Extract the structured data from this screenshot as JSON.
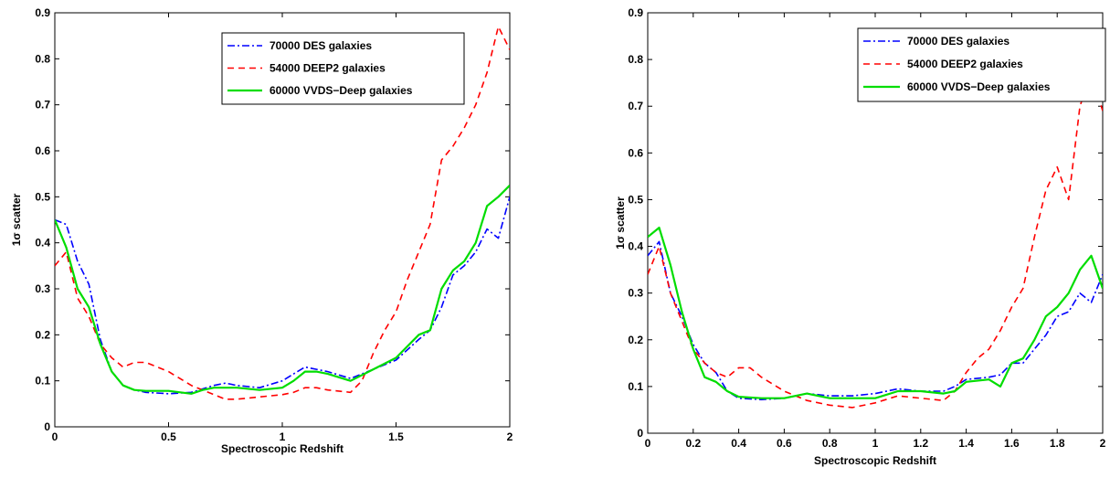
{
  "chart_data": [
    {
      "type": "line",
      "title": "",
      "xlabel": "Spectroscopic Redshift",
      "ylabel": "1σ scatter",
      "xlim": [
        0,
        2
      ],
      "ylim": [
        0,
        0.9
      ],
      "xticks": [
        0,
        0.5,
        1,
        1.5,
        2
      ],
      "xtick_labels": [
        "0",
        "0.5",
        "1",
        "1.5",
        "2"
      ],
      "yticks": [
        0,
        0.1,
        0.2,
        0.3,
        0.4,
        0.5,
        0.6,
        0.7,
        0.8,
        0.9
      ],
      "ytick_labels": [
        "0",
        "0.1",
        "0.2",
        "0.3",
        "0.4",
        "0.5",
        "0.6",
        "0.7",
        "0.8",
        "0.9"
      ],
      "grid": false,
      "legend_position": "top-right",
      "series": [
        {
          "name": "70000 DES galaxies",
          "color": "#0000ff",
          "dash": "dash-dot",
          "x": [
            0,
            0.05,
            0.1,
            0.15,
            0.2,
            0.25,
            0.3,
            0.35,
            0.4,
            0.5,
            0.6,
            0.7,
            0.75,
            0.8,
            0.9,
            1.0,
            1.05,
            1.1,
            1.2,
            1.3,
            1.4,
            1.5,
            1.6,
            1.65,
            1.7,
            1.75,
            1.8,
            1.85,
            1.9,
            1.95,
            2.0
          ],
          "y": [
            0.45,
            0.44,
            0.36,
            0.31,
            0.19,
            0.12,
            0.09,
            0.08,
            0.075,
            0.072,
            0.075,
            0.09,
            0.095,
            0.09,
            0.085,
            0.1,
            0.115,
            0.13,
            0.12,
            0.105,
            0.125,
            0.145,
            0.19,
            0.21,
            0.26,
            0.33,
            0.35,
            0.38,
            0.43,
            0.41,
            0.5
          ]
        },
        {
          "name": "54000 DEEP2 galaxies",
          "color": "#ff0000",
          "dash": "dashed",
          "x": [
            0,
            0.05,
            0.1,
            0.15,
            0.2,
            0.25,
            0.3,
            0.35,
            0.4,
            0.45,
            0.5,
            0.6,
            0.7,
            0.75,
            0.8,
            0.9,
            1.0,
            1.05,
            1.1,
            1.15,
            1.2,
            1.3,
            1.35,
            1.4,
            1.45,
            1.5,
            1.55,
            1.6,
            1.65,
            1.7,
            1.75,
            1.8,
            1.85,
            1.9,
            1.95,
            2.0
          ],
          "y": [
            0.35,
            0.38,
            0.28,
            0.24,
            0.18,
            0.15,
            0.13,
            0.14,
            0.14,
            0.13,
            0.12,
            0.09,
            0.07,
            0.06,
            0.06,
            0.065,
            0.07,
            0.075,
            0.085,
            0.085,
            0.08,
            0.075,
            0.1,
            0.16,
            0.21,
            0.25,
            0.32,
            0.38,
            0.44,
            0.58,
            0.61,
            0.65,
            0.7,
            0.77,
            0.87,
            0.82
          ]
        },
        {
          "name": "60000 VVDS−Deep galaxies",
          "color": "#00dd00",
          "dash": "solid",
          "x": [
            0,
            0.05,
            0.1,
            0.15,
            0.2,
            0.25,
            0.3,
            0.35,
            0.4,
            0.5,
            0.6,
            0.65,
            0.7,
            0.8,
            0.9,
            1.0,
            1.05,
            1.1,
            1.15,
            1.2,
            1.3,
            1.4,
            1.5,
            1.6,
            1.65,
            1.7,
            1.75,
            1.8,
            1.85,
            1.9,
            1.95,
            2.0
          ],
          "y": [
            0.45,
            0.39,
            0.3,
            0.26,
            0.18,
            0.12,
            0.09,
            0.08,
            0.078,
            0.078,
            0.072,
            0.08,
            0.085,
            0.085,
            0.08,
            0.085,
            0.1,
            0.12,
            0.12,
            0.115,
            0.1,
            0.125,
            0.15,
            0.2,
            0.21,
            0.3,
            0.34,
            0.36,
            0.4,
            0.48,
            0.5,
            0.525
          ]
        }
      ]
    },
    {
      "type": "line",
      "title": "",
      "xlabel": "Spectroscopic Redshift",
      "ylabel": "1σ scatter",
      "xlim": [
        0,
        2
      ],
      "ylim": [
        0,
        0.9
      ],
      "xticks": [
        0,
        0.2,
        0.4,
        0.6,
        0.8,
        1.0,
        1.2,
        1.4,
        1.6,
        1.8,
        2.0
      ],
      "xtick_labels": [
        "0",
        "0.2",
        "0.4",
        "0.6",
        "0.8",
        "1",
        "1.2",
        "1.4",
        "1.6",
        "1.8",
        "2"
      ],
      "yticks": [
        0,
        0.1,
        0.2,
        0.3,
        0.4,
        0.5,
        0.6,
        0.7,
        0.8,
        0.9
      ],
      "ytick_labels": [
        "0",
        "0.1",
        "0.2",
        "0.3",
        "0.4",
        "0.5",
        "0.6",
        "0.7",
        "0.8",
        "0.9"
      ],
      "grid": false,
      "legend_position": "top-right",
      "series": [
        {
          "name": "70000 DES galaxies",
          "color": "#0000ff",
          "dash": "dash-dot",
          "x": [
            0,
            0.05,
            0.1,
            0.15,
            0.2,
            0.25,
            0.3,
            0.35,
            0.4,
            0.5,
            0.6,
            0.7,
            0.8,
            0.9,
            1.0,
            1.1,
            1.2,
            1.3,
            1.35,
            1.4,
            1.5,
            1.55,
            1.6,
            1.65,
            1.7,
            1.75,
            1.8,
            1.85,
            1.9,
            1.95,
            2.0
          ],
          "y": [
            0.38,
            0.41,
            0.3,
            0.25,
            0.19,
            0.15,
            0.13,
            0.09,
            0.075,
            0.072,
            0.075,
            0.085,
            0.08,
            0.08,
            0.085,
            0.095,
            0.09,
            0.09,
            0.1,
            0.115,
            0.12,
            0.125,
            0.15,
            0.15,
            0.18,
            0.21,
            0.25,
            0.26,
            0.3,
            0.28,
            0.34
          ]
        },
        {
          "name": "54000 DEEP2 galaxies",
          "color": "#ff0000",
          "dash": "dashed",
          "x": [
            0,
            0.05,
            0.1,
            0.15,
            0.2,
            0.25,
            0.3,
            0.35,
            0.4,
            0.45,
            0.5,
            0.6,
            0.7,
            0.8,
            0.9,
            1.0,
            1.1,
            1.2,
            1.3,
            1.35,
            1.4,
            1.45,
            1.5,
            1.55,
            1.6,
            1.65,
            1.7,
            1.75,
            1.8,
            1.85,
            1.9,
            1.95,
            2.0
          ],
          "y": [
            0.34,
            0.4,
            0.3,
            0.24,
            0.18,
            0.15,
            0.13,
            0.12,
            0.14,
            0.14,
            0.12,
            0.09,
            0.07,
            0.06,
            0.055,
            0.065,
            0.08,
            0.075,
            0.07,
            0.09,
            0.13,
            0.16,
            0.18,
            0.22,
            0.27,
            0.31,
            0.42,
            0.52,
            0.57,
            0.5,
            0.7,
            0.77,
            0.69
          ]
        },
        {
          "name": "60000 VVDS−Deep galaxies",
          "color": "#00dd00",
          "dash": "solid",
          "x": [
            0,
            0.05,
            0.1,
            0.15,
            0.2,
            0.25,
            0.3,
            0.35,
            0.4,
            0.5,
            0.6,
            0.7,
            0.8,
            0.9,
            1.0,
            1.1,
            1.2,
            1.3,
            1.35,
            1.4,
            1.5,
            1.55,
            1.6,
            1.65,
            1.7,
            1.75,
            1.8,
            1.85,
            1.9,
            1.95,
            2.0
          ],
          "y": [
            0.42,
            0.44,
            0.36,
            0.26,
            0.18,
            0.12,
            0.11,
            0.09,
            0.078,
            0.075,
            0.075,
            0.085,
            0.075,
            0.075,
            0.075,
            0.09,
            0.09,
            0.085,
            0.09,
            0.11,
            0.115,
            0.1,
            0.15,
            0.16,
            0.2,
            0.25,
            0.27,
            0.3,
            0.35,
            0.38,
            0.31
          ]
        }
      ]
    }
  ]
}
